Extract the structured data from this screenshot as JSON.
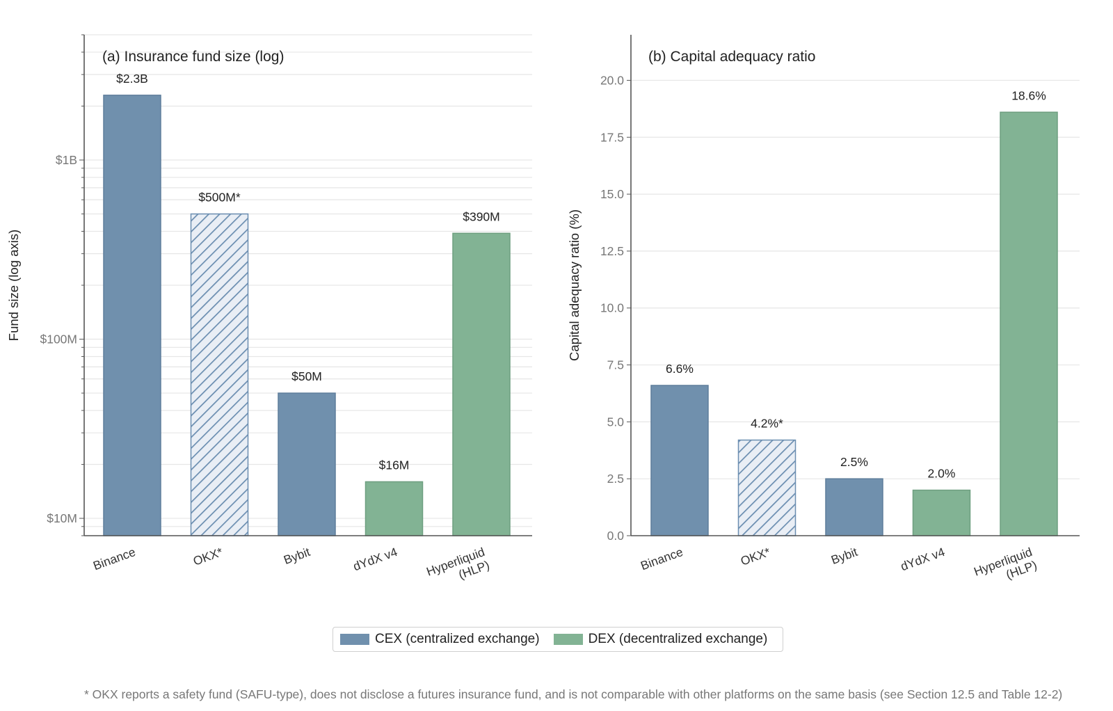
{
  "colors": {
    "cex": "#7090ad",
    "dex": "#82b394",
    "okx_stroke": "#6a8db0",
    "okx_fill": "#e9eef5",
    "grid": "#e6e6e6",
    "axis": "#555555"
  },
  "legend": {
    "cex_label": "CEX (centralized exchange)",
    "dex_label": "DEX (decentralized exchange)"
  },
  "footnote": "* OKX reports a safety fund (SAFU-type), does not disclose a futures insurance fund, and is not comparable with other platforms on the same basis (see Section 12.5 and Table 12-2)",
  "chart_data": [
    {
      "type": "bar",
      "title": "(a) Insurance fund size (log)",
      "ylabel": "Fund size (log axis)",
      "yscale": "log",
      "ylim": [
        8000000,
        5000000000
      ],
      "yticks": [
        10000000,
        100000000,
        1000000000
      ],
      "ytick_labels": [
        "$10M",
        "$100M",
        "$1B"
      ],
      "categories": [
        "Binance",
        "OKX*",
        "Bybit",
        "dYdX v4",
        "Hyperliquid\n(HLP)"
      ],
      "values": [
        2300000000,
        500000000,
        50000000,
        16000000,
        390000000
      ],
      "data_labels": [
        "$2.3B",
        "$500M*",
        "$50M",
        "$16M",
        "$390M"
      ],
      "groups": [
        "cex",
        "cex-hatched",
        "cex",
        "dex",
        "dex"
      ],
      "grid": true
    },
    {
      "type": "bar",
      "title": "(b) Capital adequacy ratio",
      "ylabel": "Capital adequacy ratio (%)",
      "ylim": [
        0,
        22
      ],
      "yticks": [
        0,
        2.5,
        5,
        7.5,
        10,
        12.5,
        15,
        17.5,
        20
      ],
      "ytick_labels": [
        "0.0",
        "2.5",
        "5.0",
        "7.5",
        "10.0",
        "12.5",
        "15.0",
        "17.5",
        "20.0"
      ],
      "categories": [
        "Binance",
        "OKX*",
        "Bybit",
        "dYdX v4",
        "Hyperliquid\n(HLP)"
      ],
      "values": [
        6.6,
        4.2,
        2.5,
        2.0,
        18.6
      ],
      "data_labels": [
        "6.6%",
        "4.2%*",
        "2.5%",
        "2.0%",
        "18.6%"
      ],
      "groups": [
        "cex",
        "cex-hatched",
        "cex",
        "dex",
        "dex"
      ],
      "grid": true
    }
  ]
}
